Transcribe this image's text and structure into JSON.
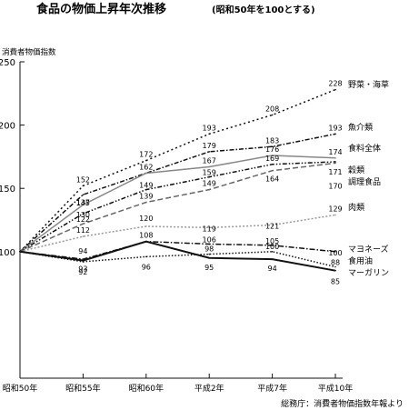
{
  "chart_data": {
    "type": "line",
    "title": "食品の物価上昇年次推移",
    "subtitle": "(昭和50年を100とする)",
    "ylabel": "消費者物価指数",
    "xlabel": "",
    "source": "総務庁：消費者物価指数年報より",
    "ylim": [
      0,
      250
    ],
    "yticks": [
      100,
      150,
      200,
      250
    ],
    "grid": false,
    "x": [
      "昭和50年",
      "昭和55年",
      "昭和60年",
      "平成2年",
      "平成7年",
      "平成10年"
    ],
    "series": [
      {
        "name": "野菜・海草",
        "color": "#111111",
        "dash": "2 3",
        "values": [
          100,
          152,
          172,
          193,
          208,
          228
        ],
        "labels": [
          "",
          "152",
          "172",
          "193",
          "208",
          "228"
        ]
      },
      {
        "name": "魚介類",
        "color": "#111111",
        "dash": "5 2 1.5 2",
        "values": [
          100,
          145,
          162,
          179,
          183,
          193
        ],
        "labels": [
          "",
          "145",
          "162",
          "179",
          "183",
          "193"
        ]
      },
      {
        "name": "食料全体",
        "color": "#888888",
        "dash": "",
        "values": [
          100,
          137,
          162,
          167,
          176,
          174
        ],
        "labels": [
          "",
          "137",
          "",
          "167",
          "176",
          "174"
        ]
      },
      {
        "name": "穀類",
        "color": "#111111",
        "dash": "5 2 1.5 2 1.5 2",
        "values": [
          100,
          130,
          149,
          159,
          169,
          171
        ],
        "labels": [
          "",
          "130",
          "149",
          "159",
          "169",
          "171"
        ]
      },
      {
        "name": "調理食品",
        "color": "#666666",
        "dash": "6 3",
        "values": [
          100,
          122,
          139,
          149,
          164,
          170
        ],
        "labels": [
          "",
          "122",
          "139",
          "149",
          "164",
          "170"
        ]
      },
      {
        "name": "肉類",
        "color": "#999999",
        "dash": "2 2",
        "values": [
          100,
          112,
          120,
          119,
          121,
          129
        ],
        "labels": [
          "",
          "112",
          "120",
          "119",
          "121",
          "129"
        ]
      },
      {
        "name": "マヨネーズ",
        "color": "#111111",
        "dash": "6 2 1.5 2",
        "values": [
          100,
          94,
          108,
          106,
          105,
          100
        ],
        "labels": [
          "",
          "94",
          "108",
          "106",
          "105",
          "100"
        ]
      },
      {
        "name": "食用油",
        "color": "#111111",
        "dash": "1.5 2",
        "values": [
          100,
          92,
          96,
          98,
          100,
          88
        ],
        "labels": [
          "",
          "92",
          "96",
          "98",
          "100",
          "88"
        ]
      },
      {
        "name": "マーガリン",
        "color": "#111111",
        "dash": "",
        "width": 2,
        "values": [
          100,
          93,
          108,
          95,
          94,
          85
        ],
        "labels": [
          "",
          "93",
          "",
          "95",
          "94",
          "85"
        ]
      }
    ]
  }
}
